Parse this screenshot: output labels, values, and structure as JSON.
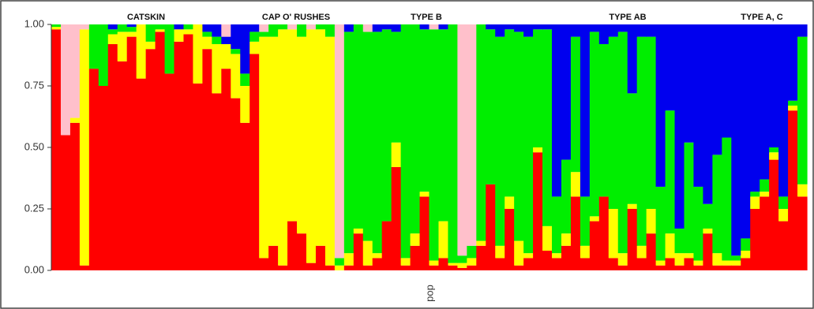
{
  "chart_data": {
    "type": "stacked_bar",
    "x_label": "pop",
    "annotations": [
      "CATSKIN",
      "CAP O' RUSHES",
      "TYPE B",
      "TYPE AB",
      "TYPE A, C"
    ],
    "categories": [
      null,
      null,
      null,
      null,
      null,
      null,
      null,
      null,
      null,
      null,
      null,
      null,
      null,
      null,
      null,
      null,
      null,
      null,
      null,
      null,
      null,
      null,
      null,
      null,
      null,
      null,
      null,
      null,
      null,
      null,
      null,
      null,
      null,
      null,
      null,
      null,
      null,
      null,
      null,
      null,
      null,
      null,
      null,
      null,
      null,
      null,
      null,
      null,
      null,
      null,
      null,
      null,
      null,
      null,
      null,
      null,
      null,
      null,
      null,
      null,
      null,
      null,
      null,
      null,
      null,
      null,
      null,
      null,
      null,
      null,
      null,
      null,
      null,
      null,
      null,
      null,
      null,
      null,
      null,
      null
    ],
    "series": [
      {
        "color": "#ff0000",
        "values": [
          0.98,
          0.55,
          0.6,
          0.02,
          0.82,
          0.75,
          0.92,
          0.85,
          0.95,
          0.78,
          0.9,
          0.97,
          0.8,
          0.93,
          0.96,
          0.76,
          0.9,
          0.72,
          0.82,
          0.7,
          0.6,
          0.88,
          0.05,
          0.1,
          0.02,
          0.2,
          0.15,
          0.03,
          0.1,
          0.02,
          0,
          0.02,
          0.15,
          0.02,
          0.05,
          0.2,
          0.42,
          0.02,
          0.1,
          0.3,
          0.02,
          0.05,
          0.02,
          0.01,
          0.02,
          0.1,
          0.35,
          0.05,
          0.25,
          0.02,
          0.05,
          0.48,
          0.08,
          0.05,
          0.1,
          0.3,
          0.05,
          0.2,
          0.3,
          0.05,
          0.02,
          0.25,
          0.05,
          0.15,
          0.02,
          0.05,
          0.02,
          0.05,
          0.02,
          0.15,
          0.02,
          0.02,
          0.02,
          0.05,
          0.25,
          0.3,
          0.45,
          0.2,
          0.65,
          0.3
        ]
      },
      {
        "color": "#ffff00",
        "values": [
          0.01,
          0,
          0.02,
          0.96,
          0,
          0,
          0.04,
          0.12,
          0.02,
          0.22,
          0.03,
          0.01,
          0,
          0.05,
          0.02,
          0.24,
          0.05,
          0.2,
          0.1,
          0.18,
          0.15,
          0.05,
          0.9,
          0.85,
          0.96,
          0.78,
          0.8,
          0.95,
          0.88,
          0.93,
          0.02,
          0.05,
          0.02,
          0.1,
          0.02,
          0,
          0.1,
          0.03,
          0.05,
          0.02,
          0.02,
          0.15,
          0.01,
          0.02,
          0.03,
          0.02,
          0,
          0.05,
          0.05,
          0.1,
          0.02,
          0.02,
          0.1,
          0.02,
          0.05,
          0.1,
          0.05,
          0.02,
          0,
          0.2,
          0.05,
          0.02,
          0.05,
          0.1,
          0.02,
          0.1,
          0.05,
          0.02,
          0.02,
          0.02,
          0.05,
          0.02,
          0.02,
          0.03,
          0.05,
          0.02,
          0.03,
          0.05,
          0.02,
          0.05
        ]
      },
      {
        "color": "#00ee00",
        "values": [
          0.01,
          0,
          0,
          0,
          0.18,
          0.25,
          0.02,
          0.03,
          0.02,
          0,
          0.07,
          0.02,
          0.2,
          0,
          0.02,
          0,
          0.02,
          0.03,
          0,
          0.02,
          0.05,
          0.04,
          0.02,
          0.05,
          0.02,
          0,
          0.05,
          0,
          0.02,
          0.05,
          0.03,
          0.9,
          0.83,
          0.85,
          0.9,
          0.78,
          0.45,
          0.95,
          0.85,
          0.66,
          0.94,
          0.78,
          0.97,
          0.03,
          0.05,
          0.88,
          0.63,
          0.85,
          0.68,
          0.85,
          0.88,
          0.48,
          0.8,
          0.23,
          0.3,
          0.55,
          0.2,
          0.75,
          0.62,
          0.7,
          0.9,
          0.45,
          0.85,
          0.7,
          0.3,
          0.5,
          0.1,
          0.45,
          0.3,
          0.1,
          0.4,
          0.5,
          0.02,
          0.05,
          0.02,
          0.05,
          0.02,
          0.05,
          0.02,
          0.6
        ]
      },
      {
        "color": "#0000ee",
        "values": [
          0,
          0,
          0,
          0,
          0,
          0,
          0.02,
          0,
          0.01,
          0,
          0,
          0,
          0,
          0.02,
          0,
          0,
          0.03,
          0.05,
          0.03,
          0.1,
          0.2,
          0.03,
          0,
          0,
          0,
          0,
          0,
          0,
          0,
          0,
          0,
          0.03,
          0,
          0,
          0.03,
          0.02,
          0.03,
          0,
          0,
          0.02,
          0,
          0.02,
          0,
          0,
          0,
          0,
          0.02,
          0.05,
          0.02,
          0.03,
          0.05,
          0.02,
          0.02,
          0.7,
          0.55,
          0.05,
          0.7,
          0.03,
          0.08,
          0.05,
          0.03,
          0.28,
          0.05,
          0.05,
          0.66,
          0.35,
          0.83,
          0.48,
          0.66,
          0.73,
          0.53,
          0.46,
          0.94,
          0.87,
          0.68,
          0.63,
          0.5,
          0.7,
          0.31,
          0.05
        ]
      },
      {
        "color": "#ffc0cb",
        "values": [
          0,
          0.45,
          0.38,
          0.02,
          0,
          0,
          0,
          0,
          0,
          0,
          0,
          0,
          0,
          0,
          0,
          0,
          0,
          0,
          0.05,
          0,
          0,
          0,
          0.03,
          0,
          0,
          0.02,
          0,
          0.02,
          0,
          0,
          0.95,
          0,
          0,
          0.03,
          0,
          0,
          0,
          0,
          0,
          0,
          0.02,
          0,
          0,
          0.94,
          0.9,
          0,
          0,
          0,
          0,
          0,
          0,
          0,
          0,
          0,
          0,
          0,
          0,
          0,
          0,
          0,
          0,
          0,
          0,
          0,
          0,
          0,
          0,
          0,
          0,
          0,
          0,
          0,
          0,
          0,
          0,
          0,
          0,
          0,
          0,
          0
        ]
      }
    ],
    "ylim": [
      0,
      1
    ],
    "yticks": [
      {
        "value": 0,
        "label": "0.00"
      },
      {
        "value": 0.25,
        "label": "0.25"
      },
      {
        "value": 0.5,
        "label": "0.50"
      },
      {
        "value": 0.75,
        "label": "0.75"
      },
      {
        "value": 1,
        "label": "1.00"
      }
    ]
  }
}
